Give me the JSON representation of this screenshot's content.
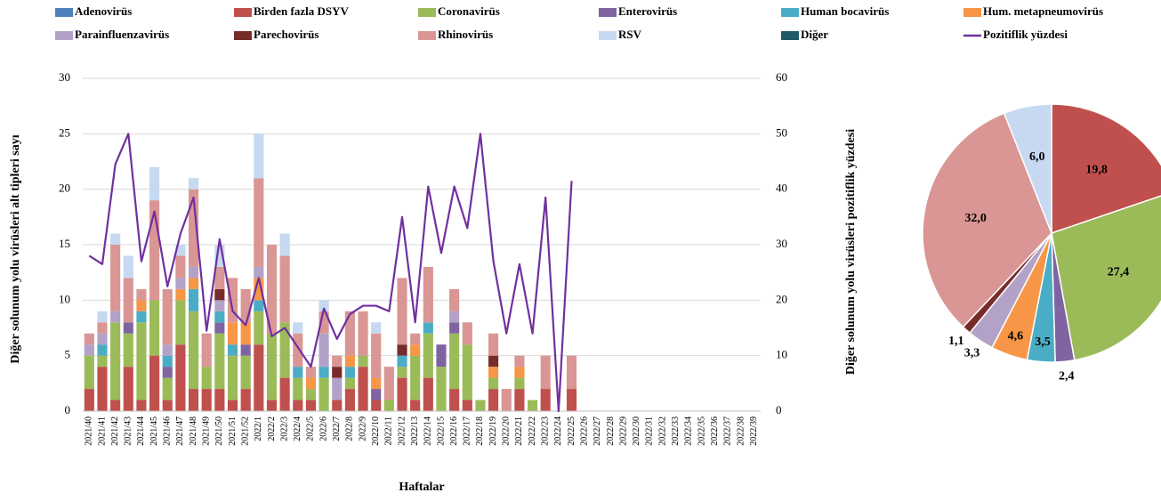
{
  "chart_data": [
    {
      "type": "bar",
      "stacked": true,
      "y_label": "Diğer solunum yolu virüsleri alt tipleri sayı",
      "y2_label": "Diğer solunum yolu virüsleri pozitiflik yüzdesi",
      "x_label": "Haftalar",
      "categories": [
        "2021/40",
        "2021/41",
        "2021/42",
        "2021/43",
        "2021/44",
        "2021/45",
        "2021/46",
        "2021/47",
        "2021/48",
        "2021/49",
        "2021/50",
        "2021/51",
        "2021/52",
        "2022/1",
        "2022/2",
        "2022/3",
        "2022/4",
        "2022/5",
        "2022/6",
        "2022/7",
        "2022/8",
        "2022/9",
        "2022/10",
        "2022/11",
        "2022/12",
        "2022/13",
        "2022/14",
        "2022/15",
        "2022/16",
        "2022/17",
        "2022/18",
        "2022/19",
        "2022/20",
        "2022/21",
        "2022/22",
        "2022/23",
        "2022/24",
        "2022/25",
        "2022/26",
        "2022/27",
        "2022/28",
        "2022/29",
        "2022/30",
        "2022/31",
        "2022/32",
        "2022/33",
        "2022/34",
        "2022/35",
        "2022/36",
        "2022/37",
        "2022/38",
        "2022/39"
      ],
      "ylim": [
        0,
        30
      ],
      "yticks": [
        0,
        5,
        10,
        15,
        20,
        25,
        30
      ],
      "y2lim": [
        0,
        60
      ],
      "y2ticks": [
        0,
        10,
        20,
        30,
        40,
        50,
        60
      ],
      "grid": true,
      "series": [
        {
          "name": "Adenovirüs",
          "color": "#4f81bd",
          "values": [
            0,
            0,
            0,
            0,
            0,
            0,
            0,
            0,
            0,
            0,
            0,
            0,
            0,
            0,
            0,
            0,
            0,
            0,
            0,
            0,
            0,
            0,
            0,
            0,
            0,
            0,
            0,
            0,
            0,
            0,
            0,
            0,
            0,
            0,
            0,
            0,
            0,
            0,
            0,
            0,
            0,
            0,
            0,
            0,
            0,
            0,
            0,
            0,
            0,
            0,
            0,
            0
          ]
        },
        {
          "name": "Birden fazla DSYV",
          "color": "#c0504d",
          "values": [
            2,
            4,
            1,
            4,
            1,
            5,
            1,
            6,
            2,
            2,
            2,
            1,
            2,
            6,
            1,
            3,
            1,
            1,
            0,
            1,
            2,
            4,
            1,
            0,
            3,
            1,
            3,
            0,
            2,
            1,
            0,
            2,
            0,
            2,
            0,
            2,
            0,
            2,
            0,
            0,
            0,
            0,
            0,
            0,
            0,
            0,
            0,
            0,
            0,
            0,
            0,
            0
          ]
        },
        {
          "name": "Coronavirüs",
          "color": "#9bbb59",
          "values": [
            3,
            1,
            7,
            3,
            7,
            5,
            2,
            4,
            7,
            2,
            5,
            4,
            3,
            3,
            6,
            5,
            2,
            1,
            3,
            0,
            1,
            1,
            0,
            1,
            1,
            4,
            4,
            4,
            5,
            5,
            1,
            1,
            0,
            1,
            1,
            0,
            0,
            0,
            0,
            0,
            0,
            0,
            0,
            0,
            0,
            0,
            0,
            0,
            0,
            0,
            0,
            0
          ]
        },
        {
          "name": "Enterovirüs",
          "color": "#8064a2",
          "values": [
            0,
            0,
            0,
            1,
            0,
            0,
            1,
            0,
            0,
            0,
            1,
            0,
            1,
            0,
            0,
            0,
            0,
            0,
            0,
            0,
            0,
            0,
            1,
            0,
            0,
            0,
            0,
            2,
            1,
            0,
            0,
            0,
            0,
            0,
            0,
            0,
            0,
            0,
            0,
            0,
            0,
            0,
            0,
            0,
            0,
            0,
            0,
            0,
            0,
            0,
            0,
            0
          ]
        },
        {
          "name": "Human bocavirüs",
          "color": "#4bacc6",
          "values": [
            0,
            1,
            0,
            0,
            1,
            0,
            1,
            0,
            2,
            0,
            1,
            1,
            0,
            1,
            0,
            0,
            1,
            0,
            1,
            0,
            1,
            0,
            0,
            0,
            1,
            0,
            1,
            0,
            0,
            0,
            0,
            0,
            0,
            0,
            0,
            0,
            0,
            0,
            0,
            0,
            0,
            0,
            0,
            0,
            0,
            0,
            0,
            0,
            0,
            0,
            0,
            0
          ]
        },
        {
          "name": "Hum. metapneumovirüs",
          "color": "#f79646",
          "values": [
            0,
            0,
            0,
            0,
            1,
            0,
            0,
            1,
            1,
            0,
            0,
            2,
            2,
            2,
            0,
            0,
            0,
            1,
            0,
            0,
            1,
            0,
            1,
            0,
            0,
            1,
            0,
            0,
            0,
            0,
            0,
            1,
            0,
            1,
            0,
            0,
            0,
            0,
            0,
            0,
            0,
            0,
            0,
            0,
            0,
            0,
            0,
            0,
            0,
            0,
            0,
            0
          ]
        },
        {
          "name": "Parainfluenzavirüs",
          "color": "#b3a2c7",
          "values": [
            1,
            1,
            1,
            0,
            0,
            0,
            1,
            1,
            1,
            0,
            1,
            0,
            0,
            1,
            0,
            0,
            0,
            0,
            3,
            2,
            0,
            0,
            0,
            0,
            0,
            0,
            0,
            0,
            1,
            0,
            0,
            0,
            0,
            0,
            0,
            0,
            0,
            0,
            0,
            0,
            0,
            0,
            0,
            0,
            0,
            0,
            0,
            0,
            0,
            0,
            0,
            0
          ]
        },
        {
          "name": "Parechovirüs",
          "color": "#772c2a",
          "values": [
            0,
            0,
            0,
            0,
            0,
            0,
            0,
            0,
            0,
            0,
            1,
            0,
            0,
            0,
            0,
            0,
            0,
            0,
            0,
            1,
            0,
            0,
            0,
            0,
            1,
            0,
            0,
            0,
            0,
            0,
            0,
            1,
            0,
            0,
            0,
            0,
            0,
            0,
            0,
            0,
            0,
            0,
            0,
            0,
            0,
            0,
            0,
            0,
            0,
            0,
            0,
            0
          ]
        },
        {
          "name": "Rhinovirüs",
          "color": "#d99694",
          "values": [
            1,
            1,
            6,
            4,
            1,
            9,
            5,
            2,
            7,
            3,
            2,
            4,
            3,
            8,
            8,
            6,
            3,
            1,
            2,
            1,
            4,
            4,
            4,
            3,
            6,
            1,
            5,
            0,
            2,
            2,
            0,
            2,
            2,
            1,
            0,
            3,
            0,
            3,
            0,
            0,
            0,
            0,
            0,
            0,
            0,
            0,
            0,
            0,
            0,
            0,
            0,
            0
          ]
        },
        {
          "name": "RSV",
          "color": "#c6d9f1",
          "values": [
            0,
            1,
            1,
            2,
            0,
            3,
            0,
            1,
            1,
            0,
            2,
            0,
            0,
            4,
            0,
            2,
            1,
            0,
            1,
            0,
            0,
            0,
            1,
            0,
            0,
            0,
            0,
            0,
            0,
            0,
            0,
            0,
            0,
            0,
            0,
            0,
            0,
            0,
            0,
            0,
            0,
            0,
            0,
            0,
            0,
            0,
            0,
            0,
            0,
            0,
            0,
            0
          ]
        },
        {
          "name": "Diğer",
          "color": "#215968",
          "values": [
            0,
            0,
            0,
            0,
            0,
            0,
            0,
            0,
            0,
            0,
            0,
            0,
            0,
            0,
            0,
            0,
            0,
            0,
            0,
            0,
            0,
            0,
            0,
            0,
            0,
            0,
            0,
            0,
            0,
            0,
            0,
            0,
            0,
            0,
            0,
            0,
            0,
            0,
            0,
            0,
            0,
            0,
            0,
            0,
            0,
            0,
            0,
            0,
            0,
            0,
            0,
            0
          ]
        },
        {
          "name": "Pozitiflik yüzdesi",
          "color": "#7030a0",
          "type": "line",
          "axis": "y2",
          "values": [
            28,
            26.5,
            44.5,
            50,
            27,
            36,
            22.5,
            32,
            38.5,
            14.5,
            31,
            18,
            15.5,
            24,
            13.5,
            15,
            11.5,
            8,
            18.5,
            13,
            17.5,
            19,
            19,
            18,
            35,
            16,
            40.5,
            28.5,
            40.5,
            33,
            50,
            27,
            14,
            26.5,
            14,
            38.5,
            0,
            41.5,
            null,
            null,
            null,
            null,
            null,
            null,
            null,
            null,
            null,
            null,
            null,
            null,
            null,
            null
          ]
        }
      ]
    },
    {
      "type": "pie",
      "values": [
        19.8,
        27.4,
        2.4,
        3.5,
        4.6,
        3.3,
        1.1,
        32.0,
        6.0
      ],
      "value_labels": [
        "19,8",
        "27,4",
        "2,4",
        "3,5",
        "4,6",
        "3,3",
        "1,1",
        "32,0",
        "6,0"
      ],
      "colors": [
        "#c0504d",
        "#9bbb59",
        "#8064a2",
        "#4bacc6",
        "#f79646",
        "#b3a2c7",
        "#772c2a",
        "#d99694",
        "#c6d9f1"
      ]
    }
  ]
}
